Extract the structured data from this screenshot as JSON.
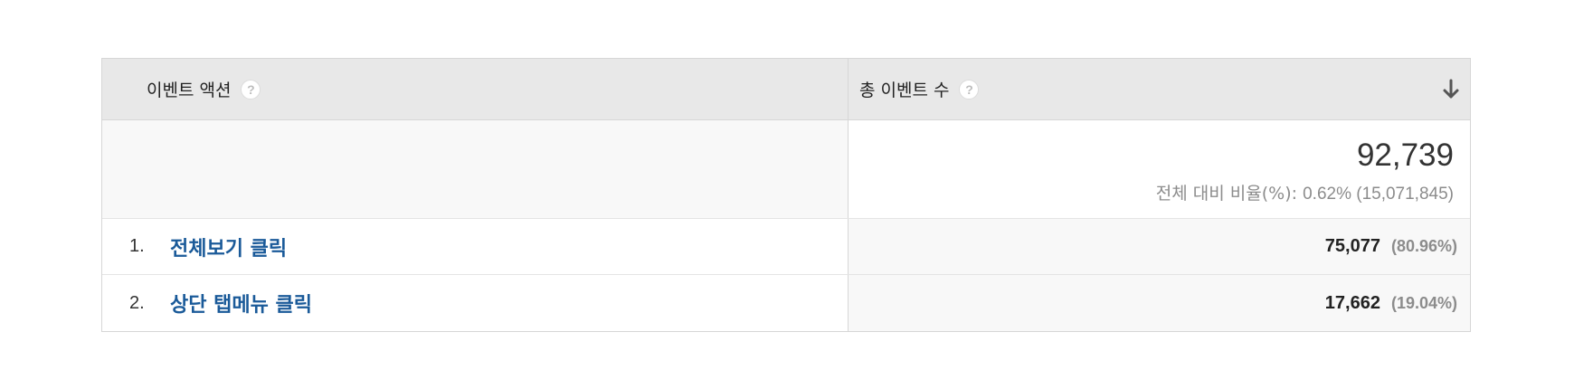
{
  "table": {
    "headers": {
      "dimension": "이벤트 액션",
      "metric": "총 이벤트 수",
      "help_glyph": "?",
      "sort_icon": "arrow-down-icon"
    },
    "totals": {
      "value": "92,739",
      "sub_label": "전체 대비 비율(%):",
      "sub_value": "0.62% (15,071,845)"
    },
    "rows": [
      {
        "index": "1.",
        "label": "전체보기 클릭",
        "value": "75,077",
        "percent": "(80.96%)"
      },
      {
        "index": "2.",
        "label": "상단 탭메뉴 클릭",
        "value": "17,662",
        "percent": "(19.04%)"
      }
    ]
  },
  "colors": {
    "link": "#1a5a99",
    "header_bg": "#e8e8e8",
    "muted_text": "#8c8c8c"
  }
}
